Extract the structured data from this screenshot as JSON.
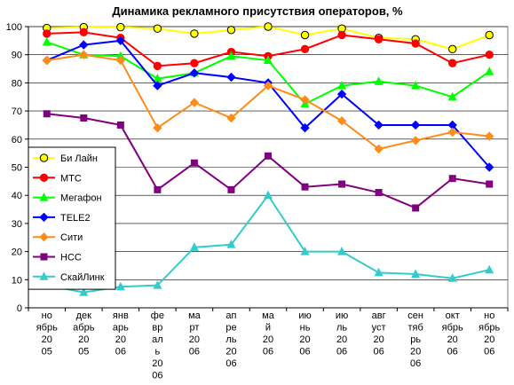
{
  "chart_data": {
    "type": "line",
    "title": "Динамика рекламного присутствия операторов, %",
    "xlabel": "",
    "ylabel": "",
    "ylim": [
      0,
      100
    ],
    "yticks": [
      0,
      10,
      20,
      30,
      40,
      50,
      60,
      70,
      80,
      90,
      100
    ],
    "grid": true,
    "legend_position": "left-middle",
    "categories": [
      [
        "но",
        "ябрь",
        "20",
        "05"
      ],
      [
        "дек",
        "абрь",
        "20",
        "05"
      ],
      [
        "янв",
        "арь",
        "20",
        "06"
      ],
      [
        "фе",
        "вр",
        "ал",
        "ь",
        "20",
        "06"
      ],
      [
        "ма",
        "рт",
        "20",
        "06"
      ],
      [
        "ап",
        "ре",
        "ль",
        "20",
        "06"
      ],
      [
        "ма",
        "й",
        "20",
        "06"
      ],
      [
        "ию",
        "нь",
        "20",
        "06"
      ],
      [
        "ию",
        "ль",
        "20",
        "06"
      ],
      [
        "авг",
        "уст",
        "20",
        "06"
      ],
      [
        "сен",
        "тяб",
        "рь",
        "20",
        "06"
      ],
      [
        "окт",
        "ябрь",
        "20",
        "06"
      ],
      [
        "но",
        "ябрь",
        "20",
        "06"
      ]
    ],
    "series": [
      {
        "name": "Би Лайн",
        "color": "#ffff00",
        "stroke": "#ffff00",
        "marker": "circle",
        "markerFill": "#ffff00",
        "markerStroke": "#000000",
        "values": [
          99.5,
          99.8,
          99.8,
          99.3,
          97.5,
          98.8,
          100,
          97,
          99.3,
          96,
          95.5,
          92,
          97
        ]
      },
      {
        "name": "МТС",
        "color": "#ff0000",
        "stroke": "#ff0000",
        "marker": "circle",
        "markerFill": "#ff0000",
        "markerStroke": "#ff0000",
        "values": [
          97.5,
          98,
          96,
          86,
          87,
          91,
          89.5,
          92,
          97,
          95.5,
          94,
          87,
          90
        ]
      },
      {
        "name": "Мегафон",
        "color": "#00ff00",
        "stroke": "#00ff00",
        "marker": "triangle",
        "markerFill": "#00ff00",
        "markerStroke": "#00ff00",
        "values": [
          94.5,
          90,
          89.5,
          81.5,
          83.5,
          89.5,
          88,
          72.5,
          79,
          80.5,
          79,
          75,
          84
        ]
      },
      {
        "name": "TELE2",
        "color": "#0000ff",
        "stroke": "#0000ff",
        "marker": "diamond",
        "markerFill": "#0000ff",
        "markerStroke": "#0000ff",
        "values": [
          88,
          93.5,
          95,
          79,
          83.5,
          82,
          80,
          64,
          76,
          65,
          65,
          65,
          50
        ]
      },
      {
        "name": "Сити",
        "color": "#ff8c1a",
        "stroke": "#ff8c1a",
        "marker": "diamond",
        "markerFill": "#ff8c1a",
        "markerStroke": "#ff8c1a",
        "values": [
          88,
          90,
          88,
          64,
          73,
          67.5,
          79,
          74,
          66.5,
          56.5,
          59.5,
          62.5,
          61
        ]
      },
      {
        "name": "НСС",
        "color": "#800080",
        "stroke": "#800080",
        "marker": "square",
        "markerFill": "#800080",
        "markerStroke": "#800080",
        "values": [
          69,
          67.5,
          65,
          42,
          51.5,
          42,
          54,
          43,
          44,
          41,
          35.5,
          46,
          44
        ]
      },
      {
        "name": "СкайЛинк",
        "color": "#33cccc",
        "stroke": "#33cccc",
        "marker": "triangle",
        "markerFill": "#33cccc",
        "markerStroke": "#33cccc",
        "values": [
          8,
          5.5,
          7.5,
          8,
          21.5,
          22.5,
          40,
          20,
          20,
          12.5,
          12,
          10.5,
          13.5
        ]
      }
    ]
  }
}
